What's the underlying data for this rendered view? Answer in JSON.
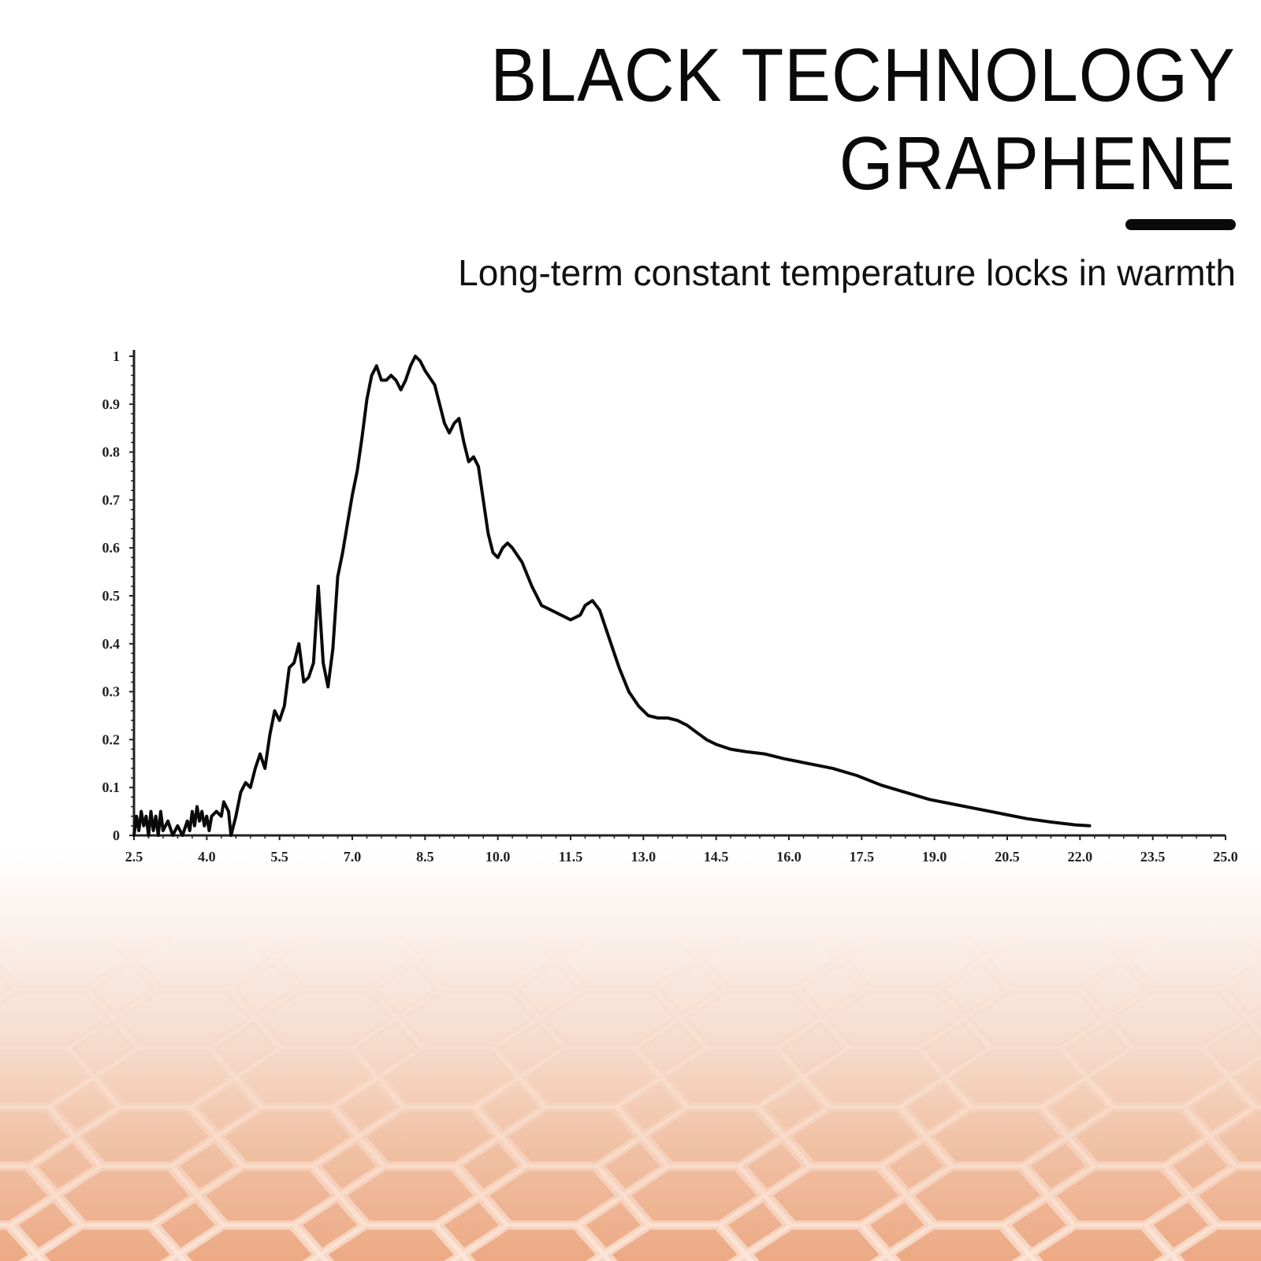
{
  "header": {
    "title_line1": "BLACK TECHNOLOGY",
    "title_line2": "GRAPHENE",
    "subtitle": "Long-term constant temperature locks in warmth"
  },
  "colors": {
    "text": "#0a0a0a",
    "line": "#0a0a0a",
    "background_bottom": "#eca984"
  },
  "chart_data": {
    "type": "line",
    "title": "",
    "xlabel": "",
    "ylabel": "",
    "xlim": [
      2.5,
      25.0
    ],
    "ylim": [
      0,
      1
    ],
    "x_ticks": [
      "2.5",
      "4.0",
      "5.5",
      "7.0",
      "8.5",
      "10.0",
      "11.5",
      "13.0",
      "14.5",
      "16.0",
      "17.5",
      "19.0",
      "20.5",
      "22.0",
      "23.5",
      "25.0"
    ],
    "y_ticks": [
      "0",
      "0.1",
      "0.2",
      "0.3",
      "0.4",
      "0.5",
      "0.6",
      "0.7",
      "0.8",
      "0.9",
      "1"
    ],
    "grid": false,
    "legend": "none",
    "series": [
      {
        "points": [
          [
            2.5,
            0.0
          ],
          [
            2.55,
            0.04
          ],
          [
            2.6,
            0.01
          ],
          [
            2.65,
            0.05
          ],
          [
            2.7,
            0.02
          ],
          [
            2.75,
            0.04
          ],
          [
            2.8,
            0.0
          ],
          [
            2.85,
            0.05
          ],
          [
            2.9,
            0.01
          ],
          [
            2.95,
            0.04
          ],
          [
            3.0,
            0.0
          ],
          [
            3.05,
            0.05
          ],
          [
            3.1,
            0.01
          ],
          [
            3.2,
            0.03
          ],
          [
            3.3,
            0.0
          ],
          [
            3.4,
            0.02
          ],
          [
            3.5,
            0.0
          ],
          [
            3.6,
            0.03
          ],
          [
            3.65,
            0.01
          ],
          [
            3.7,
            0.05
          ],
          [
            3.75,
            0.02
          ],
          [
            3.8,
            0.06
          ],
          [
            3.85,
            0.03
          ],
          [
            3.9,
            0.05
          ],
          [
            3.95,
            0.02
          ],
          [
            4.0,
            0.04
          ],
          [
            4.05,
            0.01
          ],
          [
            4.1,
            0.04
          ],
          [
            4.2,
            0.05
          ],
          [
            4.3,
            0.04
          ],
          [
            4.35,
            0.07
          ],
          [
            4.45,
            0.05
          ],
          [
            4.5,
            0.0
          ],
          [
            4.6,
            0.04
          ],
          [
            4.7,
            0.09
          ],
          [
            4.8,
            0.11
          ],
          [
            4.9,
            0.1
          ],
          [
            5.0,
            0.14
          ],
          [
            5.1,
            0.17
          ],
          [
            5.2,
            0.14
          ],
          [
            5.3,
            0.21
          ],
          [
            5.4,
            0.26
          ],
          [
            5.5,
            0.24
          ],
          [
            5.6,
            0.27
          ],
          [
            5.7,
            0.35
          ],
          [
            5.8,
            0.36
          ],
          [
            5.9,
            0.4
          ],
          [
            6.0,
            0.32
          ],
          [
            6.1,
            0.33
          ],
          [
            6.2,
            0.36
          ],
          [
            6.3,
            0.52
          ],
          [
            6.4,
            0.36
          ],
          [
            6.5,
            0.31
          ],
          [
            6.6,
            0.39
          ],
          [
            6.7,
            0.54
          ],
          [
            6.8,
            0.59
          ],
          [
            6.9,
            0.65
          ],
          [
            7.0,
            0.71
          ],
          [
            7.1,
            0.76
          ],
          [
            7.2,
            0.83
          ],
          [
            7.3,
            0.91
          ],
          [
            7.4,
            0.96
          ],
          [
            7.5,
            0.98
          ],
          [
            7.6,
            0.95
          ],
          [
            7.7,
            0.95
          ],
          [
            7.8,
            0.96
          ],
          [
            7.9,
            0.95
          ],
          [
            8.0,
            0.93
          ],
          [
            8.1,
            0.95
          ],
          [
            8.2,
            0.98
          ],
          [
            8.3,
            1.0
          ],
          [
            8.4,
            0.99
          ],
          [
            8.5,
            0.97
          ],
          [
            8.7,
            0.94
          ],
          [
            8.8,
            0.9
          ],
          [
            8.9,
            0.86
          ],
          [
            9.0,
            0.84
          ],
          [
            9.1,
            0.86
          ],
          [
            9.2,
            0.87
          ],
          [
            9.3,
            0.82
          ],
          [
            9.4,
            0.78
          ],
          [
            9.5,
            0.79
          ],
          [
            9.6,
            0.77
          ],
          [
            9.7,
            0.7
          ],
          [
            9.8,
            0.63
          ],
          [
            9.9,
            0.59
          ],
          [
            10.0,
            0.58
          ],
          [
            10.1,
            0.6
          ],
          [
            10.2,
            0.61
          ],
          [
            10.3,
            0.6
          ],
          [
            10.5,
            0.57
          ],
          [
            10.7,
            0.52
          ],
          [
            10.9,
            0.48
          ],
          [
            11.1,
            0.47
          ],
          [
            11.3,
            0.46
          ],
          [
            11.5,
            0.45
          ],
          [
            11.7,
            0.46
          ],
          [
            11.8,
            0.48
          ],
          [
            11.95,
            0.49
          ],
          [
            12.1,
            0.47
          ],
          [
            12.3,
            0.41
          ],
          [
            12.5,
            0.35
          ],
          [
            12.7,
            0.3
          ],
          [
            12.9,
            0.27
          ],
          [
            13.1,
            0.25
          ],
          [
            13.3,
            0.245
          ],
          [
            13.5,
            0.245
          ],
          [
            13.7,
            0.24
          ],
          [
            13.9,
            0.23
          ],
          [
            14.1,
            0.215
          ],
          [
            14.3,
            0.2
          ],
          [
            14.5,
            0.19
          ],
          [
            14.8,
            0.18
          ],
          [
            15.1,
            0.175
          ],
          [
            15.5,
            0.17
          ],
          [
            15.9,
            0.16
          ],
          [
            16.4,
            0.15
          ],
          [
            16.9,
            0.14
          ],
          [
            17.4,
            0.125
          ],
          [
            17.9,
            0.105
          ],
          [
            18.4,
            0.09
          ],
          [
            18.9,
            0.075
          ],
          [
            19.4,
            0.065
          ],
          [
            19.9,
            0.055
          ],
          [
            20.4,
            0.045
          ],
          [
            20.9,
            0.035
          ],
          [
            21.4,
            0.028
          ],
          [
            21.9,
            0.022
          ],
          [
            22.2,
            0.02
          ]
        ]
      }
    ]
  }
}
